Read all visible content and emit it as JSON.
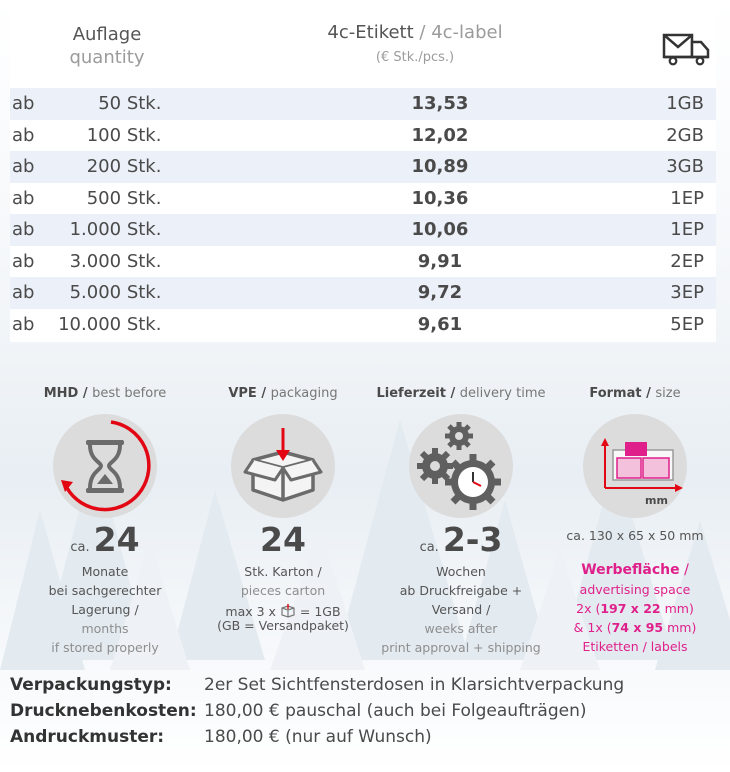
{
  "table": {
    "header": {
      "quantity_de": "Auflage",
      "quantity_en": "quantity",
      "product_de": "4c-Etikett",
      "product_sep": " / ",
      "product_en": "4c-label",
      "unit": "(€ Stk./pcs.)",
      "shipping_icon": "truck-mail-icon"
    },
    "rows": [
      {
        "prefix": "ab",
        "qty": "50 Stk.",
        "price": "13,53",
        "ship": "1GB"
      },
      {
        "prefix": "ab",
        "qty": "100 Stk.",
        "price": "12,02",
        "ship": "2GB"
      },
      {
        "prefix": "ab",
        "qty": "200 Stk.",
        "price": "10,89",
        "ship": "3GB"
      },
      {
        "prefix": "ab",
        "qty": "500 Stk.",
        "price": "10,36",
        "ship": "1EP"
      },
      {
        "prefix": "ab",
        "qty": "1.000 Stk.",
        "price": "10,06",
        "ship": "1EP"
      },
      {
        "prefix": "ab",
        "qty": "3.000 Stk.",
        "price": "9,91",
        "ship": "2EP"
      },
      {
        "prefix": "ab",
        "qty": "5.000 Stk.",
        "price": "9,72",
        "ship": "3EP"
      },
      {
        "prefix": "ab",
        "qty": "10.000 Stk.",
        "price": "9,61",
        "ship": "5EP"
      }
    ]
  },
  "info": {
    "mhd": {
      "title_de": "MHD",
      "title_en": "best before",
      "prefix": "ca.",
      "value": "24",
      "line1": "Monate",
      "line2": "bei sachgerechter Lagerung /",
      "line3": "months",
      "line4": "if stored properly",
      "icon": "hourglass-icon"
    },
    "vpe": {
      "title_de": "VPE",
      "title_en": "packaging",
      "value": "24",
      "line1": "Stk. Karton /",
      "line2": "pieces carton",
      "line3_a": "max 3 x",
      "line3_b": "= 1GB",
      "line4": "(GB = Versandpaket)",
      "icon": "box-icon"
    },
    "delivery": {
      "title_de": "Lieferzeit",
      "title_en": "delivery time",
      "prefix": "ca.",
      "value": "2-3",
      "line1": "Wochen",
      "line2": "ab Druckfreigabe + Versand /",
      "line3": "weeks after",
      "line4": "print approval + shipping",
      "icon": "gears-clock-icon"
    },
    "format": {
      "title_de": "Format",
      "title_en": "size",
      "dimensions": "ca. 130 x 65 x 50 mm",
      "mm_label": "mm",
      "ad_title": "Werbefläche",
      "ad_sep": " /",
      "ad_en": "advertising space",
      "ad_line1_a": "2x (",
      "ad_line1_b": "197 x 22",
      "ad_line1_c": " mm)",
      "ad_line2_a": "& 1x (",
      "ad_line2_b": "74 x 95",
      "ad_line2_c": " mm)",
      "ad_line3": "Etiketten / labels",
      "icon": "box-dimensions-icon",
      "accent": "#e0208a"
    }
  },
  "footer": [
    {
      "key": "Verpackungstyp:",
      "value": "2er Set Sichtfensterdosen in Klarsichtverpackung"
    },
    {
      "key": "Drucknebenkosten:",
      "value": "180,00 € pauschal (auch bei Folgeaufträgen)"
    },
    {
      "key": "Andruckmuster:",
      "value": "180,00 € (nur auf Wunsch)"
    }
  ]
}
